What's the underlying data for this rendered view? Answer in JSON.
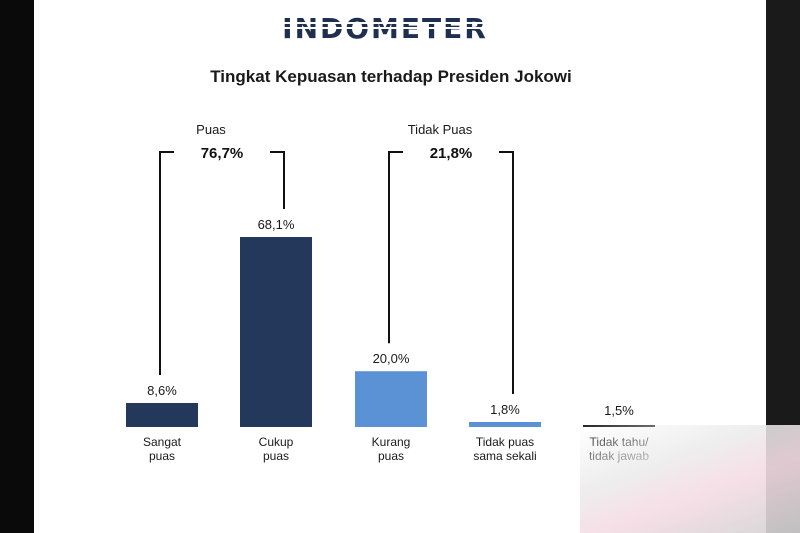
{
  "brand": {
    "logo_text": "INDOMETER"
  },
  "chart_data": {
    "type": "bar",
    "title": "Tingkat Kepuasan terhadap Presiden Jokowi",
    "categories": [
      [
        "Sangat",
        "puas"
      ],
      [
        "Cukup",
        "puas"
      ],
      [
        "Kurang",
        "puas"
      ],
      [
        "Tidak puas",
        "sama sekali"
      ],
      [
        "Tidak tahu/",
        "tidak jawab"
      ]
    ],
    "values": [
      8.6,
      68.1,
      20.0,
      1.8,
      1.5
    ],
    "value_labels": [
      "8,6%",
      "68,1%",
      "20,0%",
      "1,8%",
      "1,5%"
    ],
    "colors": [
      "#24385c",
      "#24385c",
      "#5b92d6",
      "#5b92d6",
      "#222222"
    ],
    "groups": [
      {
        "label": "Puas",
        "total": "76,7%",
        "from": 0,
        "to": 1
      },
      {
        "label": "Tidak Puas",
        "total": "21,8%",
        "from": 2,
        "to": 3
      }
    ],
    "xlabel": "",
    "ylabel": "",
    "ylim": [
      0,
      70
    ],
    "grid": false,
    "legend": "none"
  }
}
